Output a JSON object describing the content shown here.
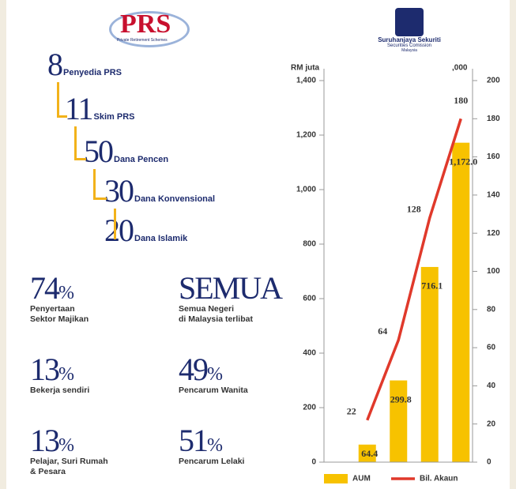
{
  "logos": {
    "prs": "PRS",
    "prs_sub": "Private Retirement Schemes",
    "sc_name": "Suruhanjaya Sekuriti",
    "sc_en": "Securities Comission",
    "sc_country": "Malaysia"
  },
  "hierarchy": [
    {
      "number": "8",
      "label": "Penyedia PRS"
    },
    {
      "number": "11",
      "label": "Skim PRS"
    },
    {
      "number": "50",
      "label": "Dana Pencen"
    },
    {
      "number": "30",
      "label": "Dana Konvensional"
    },
    {
      "number": "20",
      "label": "Dana Islamik"
    }
  ],
  "stats": [
    {
      "value": "74",
      "unit": "%",
      "lines": [
        "Penyertaan",
        "Sektor Majikan"
      ]
    },
    {
      "value": "SEMUA",
      "lines": [
        "Semua Negeri",
        "di Malaysia terlibat"
      ]
    },
    {
      "value": "13",
      "unit": "%",
      "lines": [
        "Bekerja sendiri"
      ]
    },
    {
      "value": "49",
      "unit": "%",
      "lines": [
        "Pencarum Wanita"
      ]
    },
    {
      "value": "13",
      "unit": "%",
      "lines": [
        "Pelajar, Suri Rumah",
        "& Pesara"
      ]
    },
    {
      "value": "51",
      "unit": "%",
      "lines": [
        "Pencarum Lelaki"
      ]
    }
  ],
  "chart_data": {
    "type": "bar",
    "y_label": "RM juta",
    "y2_label": ",000",
    "categories": [
      null,
      null,
      null,
      null
    ],
    "series": [
      {
        "name": "AUM",
        "color": "#f7c200",
        "values": [
          64.4,
          299.8,
          716.1,
          1172.0
        ],
        "value_labels": [
          "64.4",
          "299.8",
          "716.1",
          "1,172.0"
        ]
      },
      {
        "name": "Bil. Akaun",
        "type": "line",
        "axis": "y2",
        "color": "#e0392b",
        "values": [
          22,
          64,
          128,
          180
        ]
      }
    ],
    "ylim": [
      0,
      1400
    ],
    "yticks": [
      0,
      200,
      400,
      600,
      800,
      {
        "value": 1000,
        "label": "1,000"
      },
      {
        "value": 1200,
        "label": "1,200"
      },
      {
        "value": 1400,
        "label": "1,400"
      }
    ],
    "y2lim": [
      0,
      200
    ],
    "y2ticks": [
      0,
      20,
      40,
      60,
      80,
      100,
      120,
      140,
      160,
      180,
      200
    ],
    "legend": "bottom"
  }
}
